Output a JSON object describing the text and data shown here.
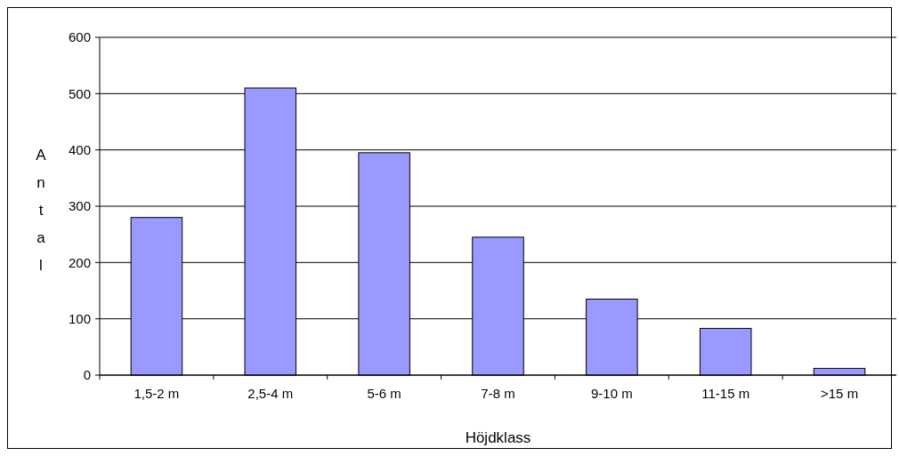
{
  "chart_data": {
    "type": "bar",
    "xlabel": "Höjdklass",
    "ylabel": "Antal",
    "categories": [
      "1,5-2 m",
      "2,5-4 m",
      "5-6 m",
      "7-8 m",
      "9-10 m",
      "11-15 m",
      ">15 m"
    ],
    "values": [
      280,
      510,
      395,
      245,
      135,
      83,
      12
    ],
    "color": "#9999ff",
    "ylim": [
      0,
      600
    ],
    "yticks": [
      0,
      100,
      200,
      300,
      400,
      500,
      600
    ],
    "grid": "y"
  }
}
